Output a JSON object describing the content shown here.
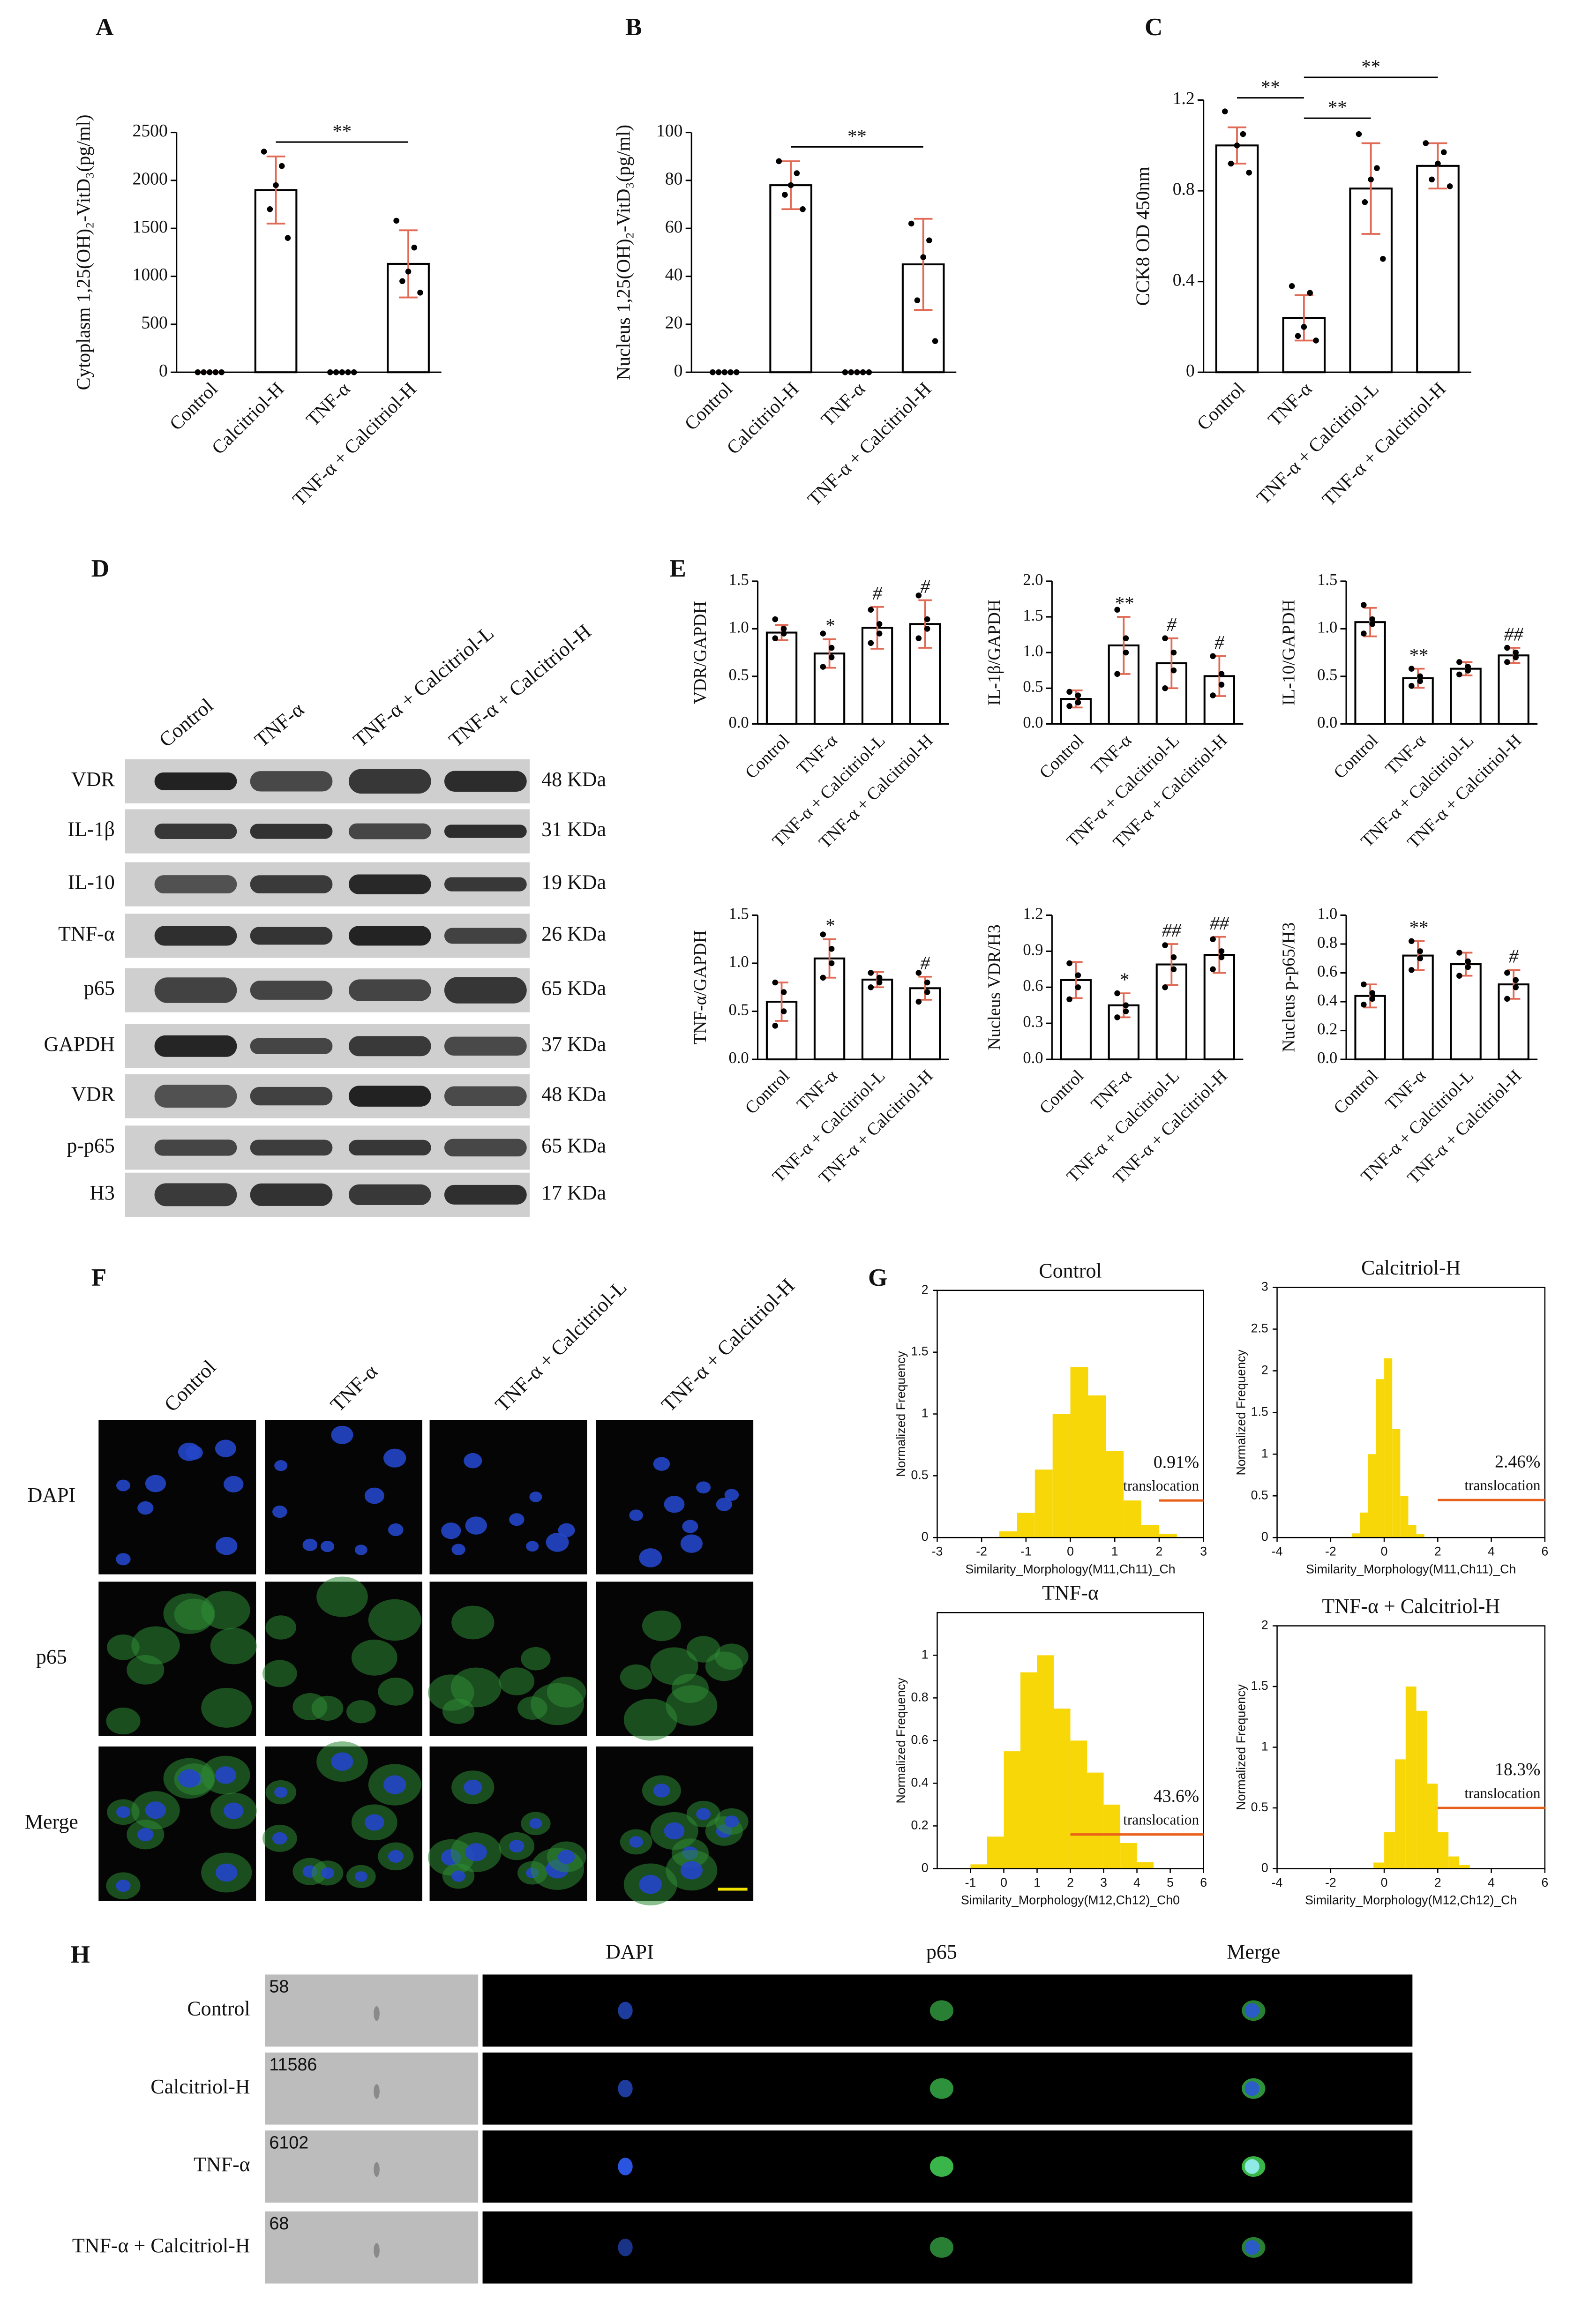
{
  "chart_data": [
    {
      "type": "bar",
      "panel": "A",
      "ylabel": "Cytoplasm 1,25(OH)₂-VitD₃(pg/ml)",
      "categories": [
        "Control",
        "Calcitriol-H",
        "TNF-α",
        "TNF-α + Calcitriol-H"
      ],
      "values": [
        0,
        1900,
        0,
        1130
      ],
      "errors": [
        0,
        350,
        0,
        350
      ],
      "points": [
        [
          0,
          0,
          0,
          0,
          0
        ],
        [
          2300,
          2150,
          1950,
          1700,
          1400
        ],
        [
          0,
          0,
          0,
          0,
          0
        ],
        [
          1580,
          1300,
          1050,
          950,
          830
        ]
      ],
      "ylim": [
        0,
        2500
      ],
      "yticks": [
        0,
        500,
        1000,
        1500,
        2000,
        2500
      ],
      "brackets": [
        {
          "between": [
            "Calcitriol-H",
            "TNF-α + Calcitriol-H"
          ],
          "y": 2400,
          "label": "**"
        }
      ],
      "color": "#ffffff",
      "edge_color": "#000000",
      "error_color": "#e06a55"
    },
    {
      "type": "bar",
      "panel": "B",
      "ylabel": "Nucleus 1,25(OH)₂-VitD₃(pg/ml)",
      "categories": [
        "Control",
        "Calcitriol-H",
        "TNF-α",
        "TNF-α + Calcitriol-H"
      ],
      "values": [
        0,
        78,
        0,
        45
      ],
      "errors": [
        0,
        10,
        0,
        19
      ],
      "points": [
        [
          0,
          0,
          0,
          0,
          0
        ],
        [
          88,
          83,
          78,
          74,
          68
        ],
        [
          0,
          0,
          0,
          0,
          0
        ],
        [
          62,
          55,
          48,
          30,
          13
        ]
      ],
      "ylim": [
        0,
        100
      ],
      "yticks": [
        0,
        20,
        40,
        60,
        80,
        100
      ],
      "brackets": [
        {
          "between": [
            "Calcitriol-H",
            "TNF-α + Calcitriol-H"
          ],
          "y": 94,
          "label": "**"
        }
      ],
      "color": "#ffffff",
      "edge_color": "#000000",
      "error_color": "#e06a55"
    },
    {
      "type": "bar",
      "panel": "C",
      "ylabel": "CCK8 OD 450nm",
      "categories": [
        "Control",
        "TNF-α",
        "TNF-α + Calcitriol-L",
        "TNF-α + Calcitriol-H"
      ],
      "values": [
        1.0,
        0.24,
        0.81,
        0.91
      ],
      "errors": [
        0.08,
        0.1,
        0.2,
        0.1
      ],
      "points": [
        [
          1.15,
          1.05,
          1.0,
          0.92,
          0.88
        ],
        [
          0.38,
          0.35,
          0.2,
          0.16,
          0.14
        ],
        [
          1.05,
          0.9,
          0.85,
          0.75,
          0.5
        ],
        [
          1.01,
          0.97,
          0.92,
          0.85,
          0.82
        ]
      ],
      "ylim": [
        0,
        1.2
      ],
      "yticks": [
        0,
        0.4,
        0.8,
        1.2
      ],
      "brackets": [
        {
          "between": [
            "Control",
            "TNF-α"
          ],
          "y": 1.21,
          "label": "**"
        },
        {
          "between": [
            "TNF-α",
            "TNF-α + Calcitriol-L"
          ],
          "y": 1.12,
          "label": "**"
        },
        {
          "between": [
            "TNF-α",
            "TNF-α + Calcitriol-H"
          ],
          "y": 1.3,
          "label": "**"
        }
      ],
      "color": "#ffffff",
      "edge_color": "#000000",
      "error_color": "#e06a55"
    },
    {
      "type": "bar",
      "panel": "E",
      "ylabel": "VDR/GAPDH",
      "categories": [
        "Control",
        "TNF-α",
        "TNF-α + Calcitriol-L",
        "TNF-α + Calcitriol-H"
      ],
      "values": [
        0.96,
        0.74,
        1.01,
        1.05
      ],
      "errors": [
        0.08,
        0.15,
        0.22,
        0.25
      ],
      "points": [
        [
          1.1,
          1.0,
          0.95,
          0.9
        ],
        [
          0.95,
          0.8,
          0.7,
          0.6
        ],
        [
          1.2,
          1.05,
          0.95,
          0.85
        ],
        [
          1.35,
          1.1,
          1.0,
          0.9
        ]
      ],
      "significance": [
        null,
        "*",
        "#",
        "#"
      ],
      "ylim": [
        0,
        1.5
      ],
      "yticks": [
        {
          "value": 0,
          "label": "0.0"
        },
        0.5,
        {
          "value": 1,
          "label": "1.0"
        },
        1.5
      ],
      "color": "#ffffff",
      "edge_color": "#000000",
      "error_color": "#e06a55"
    },
    {
      "type": "bar",
      "ylabel": "IL-1β/GAPDH",
      "categories": [
        "Control",
        "TNF-α",
        "TNF-α + Calcitriol-L",
        "TNF-α + Calcitriol-H"
      ],
      "values": [
        0.35,
        1.1,
        0.85,
        0.67
      ],
      "errors": [
        0.12,
        0.4,
        0.35,
        0.28
      ],
      "points": [
        [
          0.45,
          0.4,
          0.3,
          0.25
        ],
        [
          1.6,
          1.2,
          1.0,
          0.7
        ],
        [
          1.2,
          1.0,
          0.75,
          0.5
        ],
        [
          0.95,
          0.7,
          0.55,
          0.4
        ]
      ],
      "significance": [
        null,
        "**",
        "#",
        "#"
      ],
      "ylim": [
        0,
        2
      ],
      "yticks": [
        {
          "value": 0,
          "label": "0.0"
        },
        0.5,
        {
          "value": 1,
          "label": "1.0"
        },
        1.5,
        {
          "value": 2,
          "label": "2.0"
        }
      ],
      "color": "#ffffff",
      "edge_color": "#000000",
      "error_color": "#e06a55"
    },
    {
      "type": "bar",
      "ylabel": "IL-10/GAPDH",
      "categories": [
        "Control",
        "TNF-α",
        "TNF-α + Calcitriol-L",
        "TNF-α + Calcitriol-H"
      ],
      "values": [
        1.07,
        0.48,
        0.58,
        0.72
      ],
      "errors": [
        0.15,
        0.1,
        0.07,
        0.08
      ],
      "points": [
        [
          1.25,
          1.1,
          1.05,
          0.95
        ],
        [
          0.58,
          0.5,
          0.45,
          0.4
        ],
        [
          0.65,
          0.6,
          0.56,
          0.52
        ],
        [
          0.8,
          0.75,
          0.7,
          0.65
        ]
      ],
      "significance": [
        null,
        "**",
        null,
        "##"
      ],
      "ylim": [
        0,
        1.5
      ],
      "yticks": [
        {
          "value": 0,
          "label": "0.0"
        },
        0.5,
        {
          "value": 1,
          "label": "1.0"
        },
        1.5
      ],
      "color": "#ffffff",
      "edge_color": "#000000",
      "error_color": "#e06a55"
    },
    {
      "type": "bar",
      "ylabel": "TNF-α/GAPDH",
      "categories": [
        "Control",
        "TNF-α",
        "TNF-α + Calcitriol-L",
        "TNF-α + Calcitriol-H"
      ],
      "values": [
        0.6,
        1.05,
        0.83,
        0.74
      ],
      "errors": [
        0.2,
        0.2,
        0.08,
        0.12
      ],
      "points": [
        [
          0.8,
          0.7,
          0.5,
          0.35
        ],
        [
          1.3,
          1.15,
          1.0,
          0.85
        ],
        [
          0.9,
          0.85,
          0.8,
          0.75
        ],
        [
          0.9,
          0.8,
          0.7,
          0.6
        ]
      ],
      "significance": [
        null,
        "*",
        null,
        "#"
      ],
      "ylim": [
        0,
        1.5
      ],
      "yticks": [
        {
          "value": 0,
          "label": "0.0"
        },
        0.5,
        {
          "value": 1,
          "label": "1.0"
        },
        1.5
      ],
      "color": "#ffffff",
      "edge_color": "#000000",
      "error_color": "#e06a55"
    },
    {
      "type": "bar",
      "ylabel": "Nucleus VDR/H3",
      "categories": [
        "Control",
        "TNF-α",
        "TNF-α + Calcitriol-L",
        "TNF-α + Calcitriol-H"
      ],
      "values": [
        0.66,
        0.45,
        0.79,
        0.87
      ],
      "errors": [
        0.15,
        0.1,
        0.17,
        0.15
      ],
      "points": [
        [
          0.8,
          0.7,
          0.6,
          0.5
        ],
        [
          0.55,
          0.45,
          0.4,
          0.35
        ],
        [
          0.95,
          0.85,
          0.75,
          0.6
        ],
        [
          1.0,
          0.9,
          0.85,
          0.75
        ]
      ],
      "significance": [
        null,
        "*",
        "##",
        "##"
      ],
      "ylim": [
        0,
        1.2
      ],
      "yticks": [
        {
          "value": 0,
          "label": "0.0"
        },
        0.3,
        0.6,
        0.9,
        1.2
      ],
      "color": "#ffffff",
      "edge_color": "#000000",
      "error_color": "#e06a55"
    },
    {
      "type": "bar",
      "ylabel": "Nucleus p-p65/H3",
      "categories": [
        "Control",
        "TNF-α",
        "TNF-α + Calcitriol-L",
        "TNF-α + Calcitriol-H"
      ],
      "values": [
        0.44,
        0.72,
        0.66,
        0.52
      ],
      "errors": [
        0.08,
        0.1,
        0.08,
        0.1
      ],
      "points": [
        [
          0.52,
          0.46,
          0.42,
          0.38
        ],
        [
          0.82,
          0.75,
          0.7,
          0.62
        ],
        [
          0.74,
          0.68,
          0.64,
          0.58
        ],
        [
          0.6,
          0.55,
          0.5,
          0.42
        ]
      ],
      "significance": [
        null,
        "**",
        null,
        "#"
      ],
      "ylim": [
        0,
        1
      ],
      "yticks": [
        {
          "value": 0,
          "label": "0.0"
        },
        0.2,
        0.4,
        0.6,
        0.8,
        {
          "value": 1,
          "label": "1.0"
        }
      ],
      "color": "#ffffff",
      "edge_color": "#000000",
      "error_color": "#e06a55"
    },
    {
      "type": "histogram",
      "panel": "G",
      "title": "Control",
      "xlabel": "Similarity_Morphology(M11,Ch11)_Ch",
      "ylabel": "Normalized Frequency",
      "bins": [
        -1.6,
        -1.2,
        -0.8,
        -0.4,
        0,
        0.4,
        0.8,
        1.2,
        1.6,
        2.0,
        2.4
      ],
      "counts": [
        0.05,
        0.2,
        0.55,
        1.0,
        1.38,
        1.15,
        0.7,
        0.3,
        0.1,
        0.03
      ],
      "xlim": [
        -3,
        3
      ],
      "xticks": [
        -3,
        -2,
        -1,
        0,
        1,
        2,
        3
      ],
      "ylim": [
        0,
        2
      ],
      "yticks": [
        0,
        0.5,
        1,
        1.5,
        2
      ],
      "gate": [
        2,
        3
      ],
      "gate_y": 0.3,
      "gate_label": "translocation",
      "annotation": "0.91%",
      "color": "#f7d708",
      "gate_color": "#e8611a"
    },
    {
      "type": "histogram",
      "title": "Calcitriol-H",
      "xlabel": "Similarity_Morphology(M11,Ch11)_Ch",
      "ylabel": "Normalized Frequency",
      "bins": [
        -1.2,
        -0.9,
        -0.6,
        -0.3,
        0,
        0.3,
        0.6,
        0.9,
        1.2,
        1.5
      ],
      "counts": [
        0.05,
        0.3,
        1.0,
        1.9,
        2.15,
        1.3,
        0.5,
        0.15,
        0.04
      ],
      "xlim": [
        -4,
        6
      ],
      "xticks": [
        -4,
        -2,
        0,
        2,
        4,
        6
      ],
      "ylim": [
        0,
        3
      ],
      "yticks": [
        0,
        0.5,
        1,
        1.5,
        2,
        2.5,
        3
      ],
      "gate": [
        2,
        6
      ],
      "gate_y": 0.45,
      "gate_label": "translocation",
      "annotation": "2.46%",
      "color": "#f7d708",
      "gate_color": "#e8611a"
    },
    {
      "type": "histogram",
      "title": "TNF-α",
      "xlabel": "Similarity_Morphology(M12,Ch12)_Ch0",
      "ylabel": "Normalized Frequency",
      "bins": [
        -1,
        -0.5,
        0,
        0.5,
        1,
        1.5,
        2,
        2.5,
        3,
        3.5,
        4,
        4.5
      ],
      "counts": [
        0.02,
        0.15,
        0.55,
        0.92,
        1.0,
        0.75,
        0.6,
        0.45,
        0.3,
        0.12,
        0.03
      ],
      "xlim": [
        -2,
        6
      ],
      "xticks": [
        -1,
        0,
        1,
        2,
        3,
        4,
        5,
        6
      ],
      "ylim": [
        0,
        1.2
      ],
      "yticks": [
        0,
        0.2,
        0.4,
        0.6,
        0.8,
        1
      ],
      "gate": [
        2,
        6
      ],
      "gate_y": 0.16,
      "gate_label": "translocation",
      "annotation": "43.6%",
      "color": "#f7d708",
      "gate_color": "#e8611a"
    },
    {
      "type": "histogram",
      "title": "TNF-α + Calcitriol-H",
      "xlabel": "Similarity_Morphology(M12,Ch12)_Ch",
      "ylabel": "Normalized Frequency",
      "bins": [
        -0.4,
        0,
        0.4,
        0.8,
        1.2,
        1.6,
        2.0,
        2.4,
        2.8,
        3.2
      ],
      "counts": [
        0.05,
        0.3,
        0.9,
        1.5,
        1.3,
        0.7,
        0.3,
        0.1,
        0.03
      ],
      "xlim": [
        -4,
        6
      ],
      "xticks": [
        -4,
        -2,
        0,
        2,
        4,
        6
      ],
      "ylim": [
        0,
        2
      ],
      "yticks": [
        0,
        0.5,
        1,
        1.5,
        2
      ],
      "gate": [
        2,
        6
      ],
      "gate_y": 0.5,
      "gate_label": "translocation",
      "annotation": "18.3%",
      "color": "#f7d708",
      "gate_color": "#e8611a"
    }
  ],
  "western_blot": {
    "panel": "D",
    "lanes": [
      "Control",
      "TNF-α",
      "TNF-α + Calcitriol-L",
      "TNF-α + Calcitriol-H"
    ],
    "rows": [
      {
        "protein": "VDR",
        "size": "48 KDa"
      },
      {
        "protein": "IL-1β",
        "size": "31 KDa"
      },
      {
        "protein": "IL-10",
        "size": "19 KDa"
      },
      {
        "protein": "TNF-α",
        "size": "26 KDa"
      },
      {
        "protein": "p65",
        "size": "65 KDa"
      },
      {
        "protein": "GAPDH",
        "size": "37 KDa"
      },
      {
        "protein": "VDR",
        "size": "48 KDa"
      },
      {
        "protein": "p-p65",
        "size": "65 KDa"
      },
      {
        "protein": "H3",
        "size": "17 KDa"
      }
    ]
  },
  "immunofluorescence": {
    "panel": "F",
    "columns": [
      "Control",
      "TNF-α",
      "TNF-α + Calcitriol-L",
      "TNF-α + Calcitriol-H"
    ],
    "rows": [
      "DAPI",
      "p65",
      "Merge"
    ]
  },
  "imaging_flow": {
    "panel": "H",
    "columns": [
      "DAPI",
      "p65",
      "Merge"
    ],
    "rows": [
      {
        "label": "Control",
        "count": 58
      },
      {
        "label": "Calcitriol-H",
        "count": 11586
      },
      {
        "label": "TNF-α",
        "count": 6102
      },
      {
        "label": "TNF-α + Calcitriol-H",
        "count": 68
      }
    ]
  }
}
